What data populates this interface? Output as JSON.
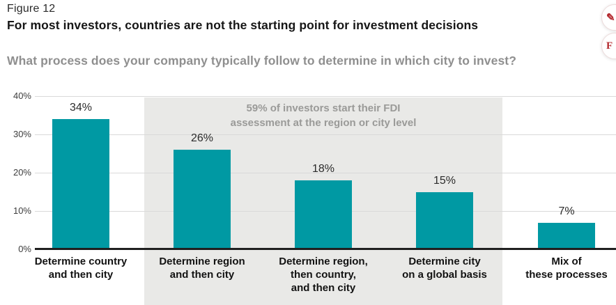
{
  "header": {
    "figure_label": "Figure 12",
    "title": "For most investors, countries are not the starting point for investment decisions",
    "subtitle": "What process does your company typically follow to determine in which city to invest?"
  },
  "floating_buttons": {
    "edit_label": "✎",
    "feedback_label": "F",
    "accent_color": "#b3282d"
  },
  "chart_data": {
    "type": "bar",
    "categories": [
      "Determine country\nand then city",
      "Determine region\nand then city",
      "Determine region,\nthen country,\nand then city",
      "Determine city\non a global basis",
      "Mix of\nthese processes"
    ],
    "values": [
      34,
      26,
      18,
      15,
      7
    ],
    "value_labels": [
      "34%",
      "26%",
      "18%",
      "15%",
      "7%"
    ],
    "y_ticks": [
      {
        "label": "40%",
        "value": 40
      },
      {
        "label": "30%",
        "value": 30
      },
      {
        "label": "20%",
        "value": 20
      },
      {
        "label": "10%",
        "value": 10
      },
      {
        "label": "0%",
        "value": 0
      }
    ],
    "ylim": [
      0,
      40
    ],
    "grid": true,
    "legend": false,
    "bar_color": "#0099a3",
    "annotation": "59% of investors start their FDI\nassessment at the region or city level",
    "highlight": {
      "from_category_index": 1,
      "to_category_index": 3
    }
  }
}
